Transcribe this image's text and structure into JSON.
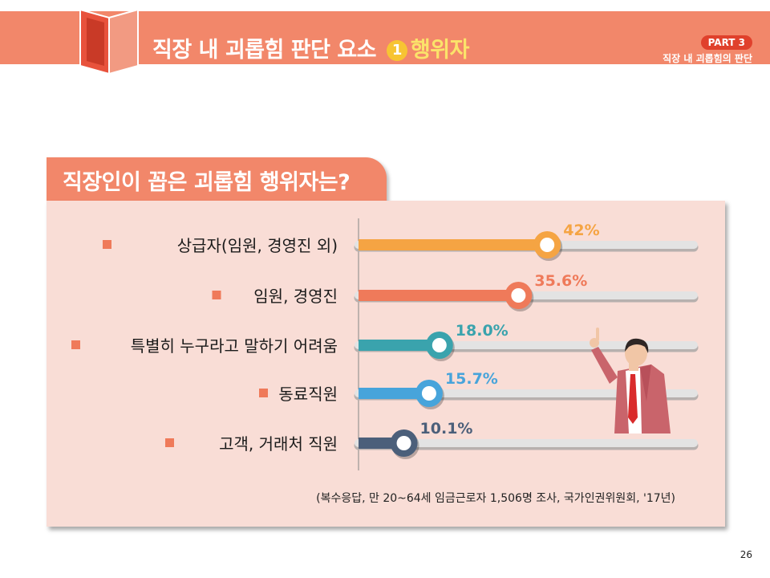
{
  "header": {
    "title_main": "직장 내 괴롭힘 판단 요소",
    "title_number": "1",
    "title_highlight": "행위자",
    "part_label": "PART 3",
    "part_subtitle": "직장 내 괴롭힘의 판단"
  },
  "question": "직장인이 꼽은 괴롭힘 행위자는?",
  "chart_data": {
    "type": "bar",
    "orientation": "horizontal",
    "categories": [
      "상급자(임원, 경영진 외)",
      "임원, 경영진",
      "특별히 누구라고 말하기 어려움",
      "동료직원",
      "고객, 거래처 직원"
    ],
    "values": [
      42,
      35.6,
      18.0,
      15.7,
      10.1
    ],
    "value_labels": [
      "42%",
      "35.6%",
      "18.0%",
      "15.7%",
      "10.1%"
    ],
    "colors": [
      "#f5a443",
      "#ef7a5a",
      "#3aa3ad",
      "#47a4db",
      "#4b5f7a"
    ],
    "xlim": [
      0,
      100
    ],
    "grid": false,
    "legend": "none"
  },
  "source_note": "(복수응답, 만 20~64세 임금근로자 1,506명 조사, 국가인권위원회, '17년)",
  "page_number": "26"
}
